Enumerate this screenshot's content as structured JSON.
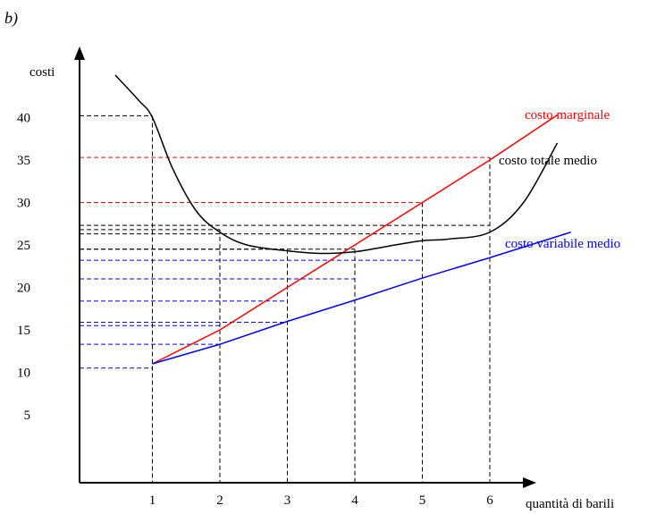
{
  "panel_label": "b)",
  "chart_data": {
    "type": "line",
    "ylabel": "costi",
    "xlabel": "quantità di barili",
    "x_ticks": [
      1,
      2,
      3,
      4,
      5,
      6
    ],
    "y_ticks": [
      5,
      10,
      15,
      20,
      25,
      30,
      35,
      40
    ],
    "xlim": [
      0,
      7
    ],
    "ylim": [
      0,
      45
    ],
    "series": [
      {
        "name": "costo marginale",
        "color": "#ff0000",
        "x": [
          1,
          2,
          3,
          4,
          5,
          6,
          7
        ],
        "y": [
          11,
          15,
          20,
          25,
          30,
          35,
          40.3
        ]
      },
      {
        "name": "costo totale medio",
        "color": "#000000",
        "x": [
          0.45,
          0.8,
          1,
          1.3,
          1.65,
          2,
          2.4,
          3,
          3.5,
          4,
          4.6,
          5,
          5.4,
          6,
          6.5,
          7
        ],
        "y": [
          45,
          42,
          40,
          34,
          29,
          26.5,
          25,
          24.3,
          24,
          24.2,
          25,
          25.5,
          25.7,
          26.5,
          30,
          37
        ]
      },
      {
        "name": "costo variabile medio",
        "color": "#0000ff",
        "x": [
          1,
          2,
          3,
          4,
          5,
          6,
          7.2
        ],
        "y": [
          11,
          13.3,
          16,
          18.5,
          21.1,
          23.5,
          26.5
        ]
      }
    ],
    "guides": [
      {
        "x": 1,
        "y": 40.2,
        "color": "#000000"
      },
      {
        "x": 1,
        "y": 10.5,
        "color": "#0000ff"
      },
      {
        "x": 2,
        "y": 26.8,
        "color": "#000000"
      },
      {
        "x": 2,
        "y": 15.5,
        "color": "#0000ff"
      },
      {
        "x": 2,
        "y": 13.3,
        "color": "#0000ff"
      },
      {
        "x": 3,
        "y": 24.5,
        "color": "#000000"
      },
      {
        "x": 3,
        "y": 18.4,
        "color": "#0000ff"
      },
      {
        "x": 3,
        "y": 15.9,
        "color": "#0000ff"
      },
      {
        "x": 4,
        "y": 24.5,
        "color": "#000000"
      },
      {
        "x": 4,
        "y": 21.0,
        "color": "#0000ff"
      },
      {
        "x": 5,
        "y": 30.0,
        "color": "#ff0000"
      },
      {
        "x": 5,
        "y": 26.3,
        "color": "#000000"
      },
      {
        "x": 5,
        "y": 23.2,
        "color": "#0000ff"
      },
      {
        "x": 6,
        "y": 35.3,
        "color": "#ff0000"
      },
      {
        "x": 6,
        "y": 27.3,
        "color": "#000000"
      }
    ],
    "grid": false,
    "legend": "inline labels at line ends"
  }
}
